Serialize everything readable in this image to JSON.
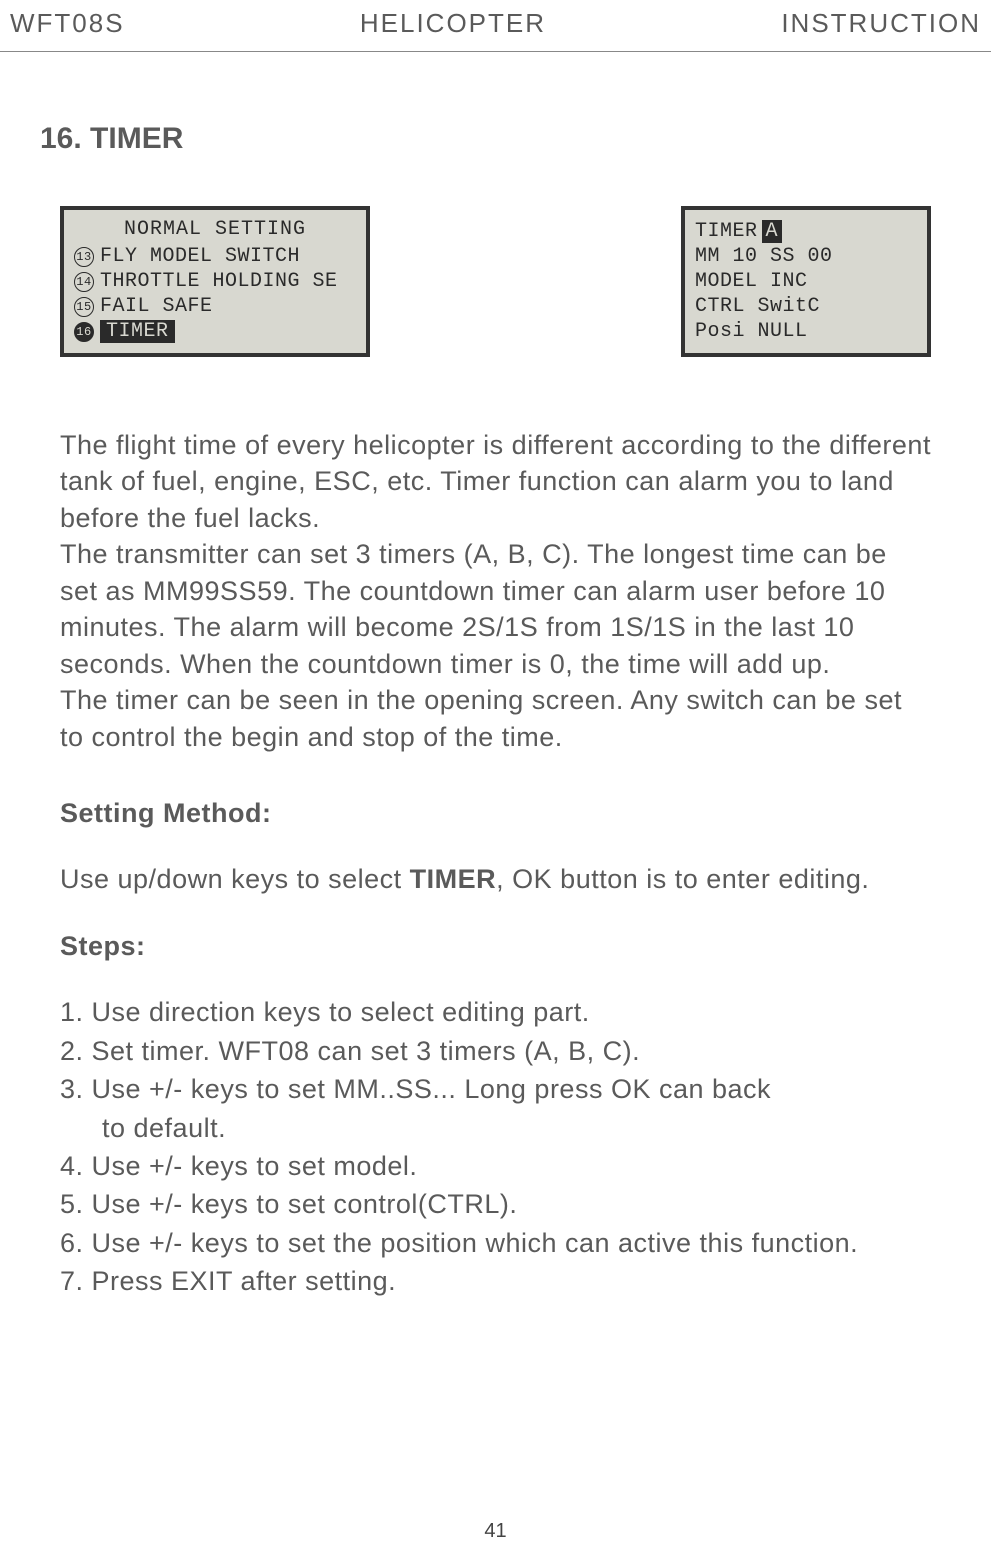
{
  "header": {
    "left": "WFT08S",
    "center": "HELICOPTER",
    "right": "INSTRUCTION"
  },
  "section_title": "16. TIMER",
  "lcd_left": {
    "title": "NORMAL SETTING",
    "rows": [
      {
        "num": "13",
        "filled": false,
        "text": "FLY MODEL SWITCH",
        "hl": false
      },
      {
        "num": "14",
        "filled": false,
        "text": "THROTTLE HOLDING SE",
        "hl": false
      },
      {
        "num": "15",
        "filled": false,
        "text": "FAIL SAFE",
        "hl": false
      },
      {
        "num": "16",
        "filled": true,
        "text": "TIMER",
        "hl": true
      }
    ]
  },
  "lcd_right": {
    "rows": [
      "TIMER",
      "MM 10 SS 00",
      "MODEL  INC",
      " CTRL SwitC",
      " Posi NULL"
    ],
    "timer_badge": "A"
  },
  "paras": [
    "The flight time of every helicopter is different according to the different tank of fuel, engine, ESC, etc. Timer function can alarm you to land before the fuel lacks.",
    "The transmitter can set 3 timers (A, B, C). The longest time can be set as MM99SS59. The countdown timer can alarm user before 10 minutes. The alarm will become 2S/1S from 1S/1S  in the last 10 seconds. When the countdown timer is 0, the time will add up.",
    "The timer can be seen in the opening screen. Any switch can be set to control the begin and stop of the time."
  ],
  "setting_method_label": "Setting Method:",
  "setting_method_pre": "Use up/down keys to select ",
  "setting_method_bold": "TIMER",
  "setting_method_post": ", OK button is to enter  editing.",
  "steps_label": "Steps:",
  "steps": [
    "1. Use direction keys to select editing part.",
    "2. Set timer. WFT08 can set 3 timers (A, B, C).",
    "3. Use +/- keys to set MM..SS... Long press OK can back",
    "    to default.",
    "4. Use +/- keys to set model.",
    "5. Use +/- keys to set control(CTRL).",
    "6. Use +/- keys to set the position which can active this function.",
    "7. Press EXIT after setting."
  ],
  "page_number": "41"
}
